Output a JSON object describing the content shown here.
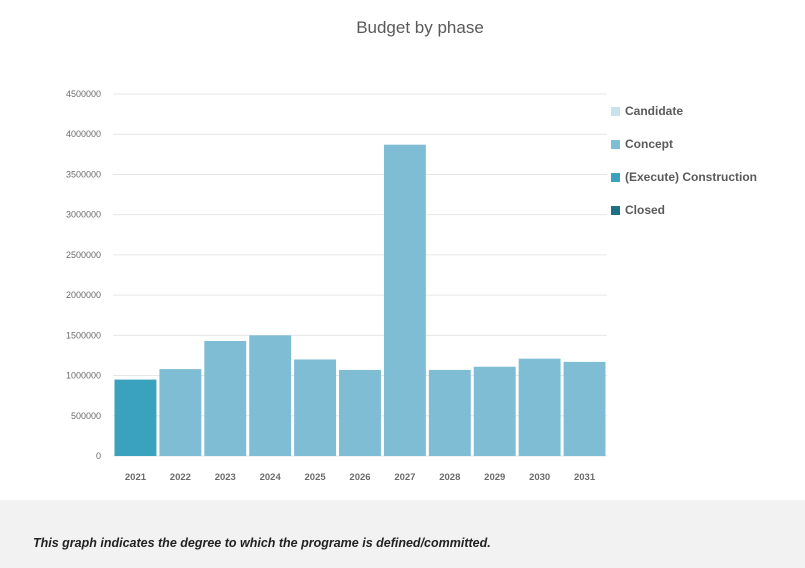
{
  "caption": "This graph indicates the degree to which the programe is defined/committed.",
  "chart_data": {
    "type": "bar",
    "stacked": true,
    "title": "Budget by phase",
    "xlabel": "",
    "ylabel": "",
    "ylim": [
      0,
      4500000
    ],
    "yticks": [
      0,
      500000,
      1000000,
      1500000,
      2000000,
      2500000,
      3000000,
      3500000,
      4000000,
      4500000
    ],
    "grid": true,
    "legend_position": "right",
    "categories": [
      "2021",
      "2022",
      "2023",
      "2024",
      "2025",
      "2026",
      "2027",
      "2028",
      "2029",
      "2030",
      "2031"
    ],
    "series": [
      {
        "name": "Candidate",
        "color": "#c9e3ec",
        "values": [
          0,
          0,
          0,
          0,
          0,
          0,
          0,
          0,
          0,
          0,
          0
        ]
      },
      {
        "name": "Concept",
        "color": "#7fbdd4",
        "values": [
          0,
          1080000,
          1430000,
          1500000,
          1200000,
          1070000,
          3870000,
          1070000,
          1110000,
          1210000,
          1170000
        ]
      },
      {
        "name": "(Execute) Construction",
        "color": "#3aa2bd",
        "values": [
          950000,
          0,
          0,
          0,
          0,
          0,
          0,
          0,
          0,
          0,
          0
        ]
      },
      {
        "name": "Closed",
        "color": "#1f6f85",
        "values": [
          0,
          0,
          0,
          0,
          0,
          0,
          0,
          0,
          0,
          0,
          0
        ]
      }
    ]
  }
}
